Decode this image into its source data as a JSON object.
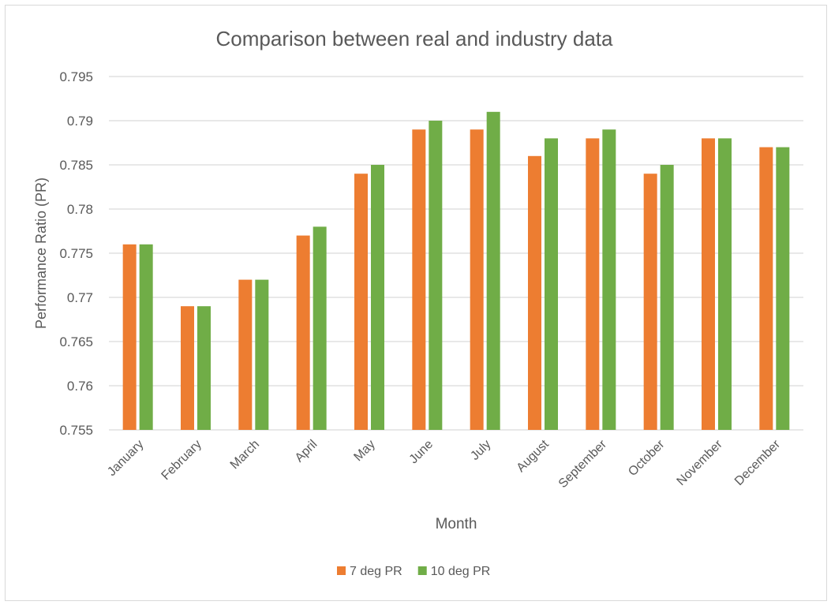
{
  "chart_data": {
    "type": "bar",
    "title": "Comparison between real and industry data",
    "xlabel": "Month",
    "ylabel": "Performance Ratio (PR)",
    "ylim": [
      0.755,
      0.795
    ],
    "yticks": [
      "0.755",
      "0.76",
      "0.765",
      "0.77",
      "0.775",
      "0.78",
      "0.785",
      "0.79",
      "0.795"
    ],
    "grid": true,
    "legend_position": "bottom",
    "categories": [
      "January",
      "February",
      "March",
      "April",
      "May",
      "June",
      "July",
      "August",
      "September",
      "October",
      "November",
      "December"
    ],
    "series": [
      {
        "name": "7 deg PR",
        "color": "#ED7D31",
        "values": [
          0.776,
          0.769,
          0.772,
          0.777,
          0.784,
          0.789,
          0.789,
          0.786,
          0.788,
          0.784,
          0.788,
          0.787
        ]
      },
      {
        "name": "10 deg PR",
        "color": "#70AD47",
        "values": [
          0.776,
          0.769,
          0.772,
          0.778,
          0.785,
          0.79,
          0.791,
          0.788,
          0.789,
          0.785,
          0.788,
          0.787
        ]
      }
    ]
  }
}
